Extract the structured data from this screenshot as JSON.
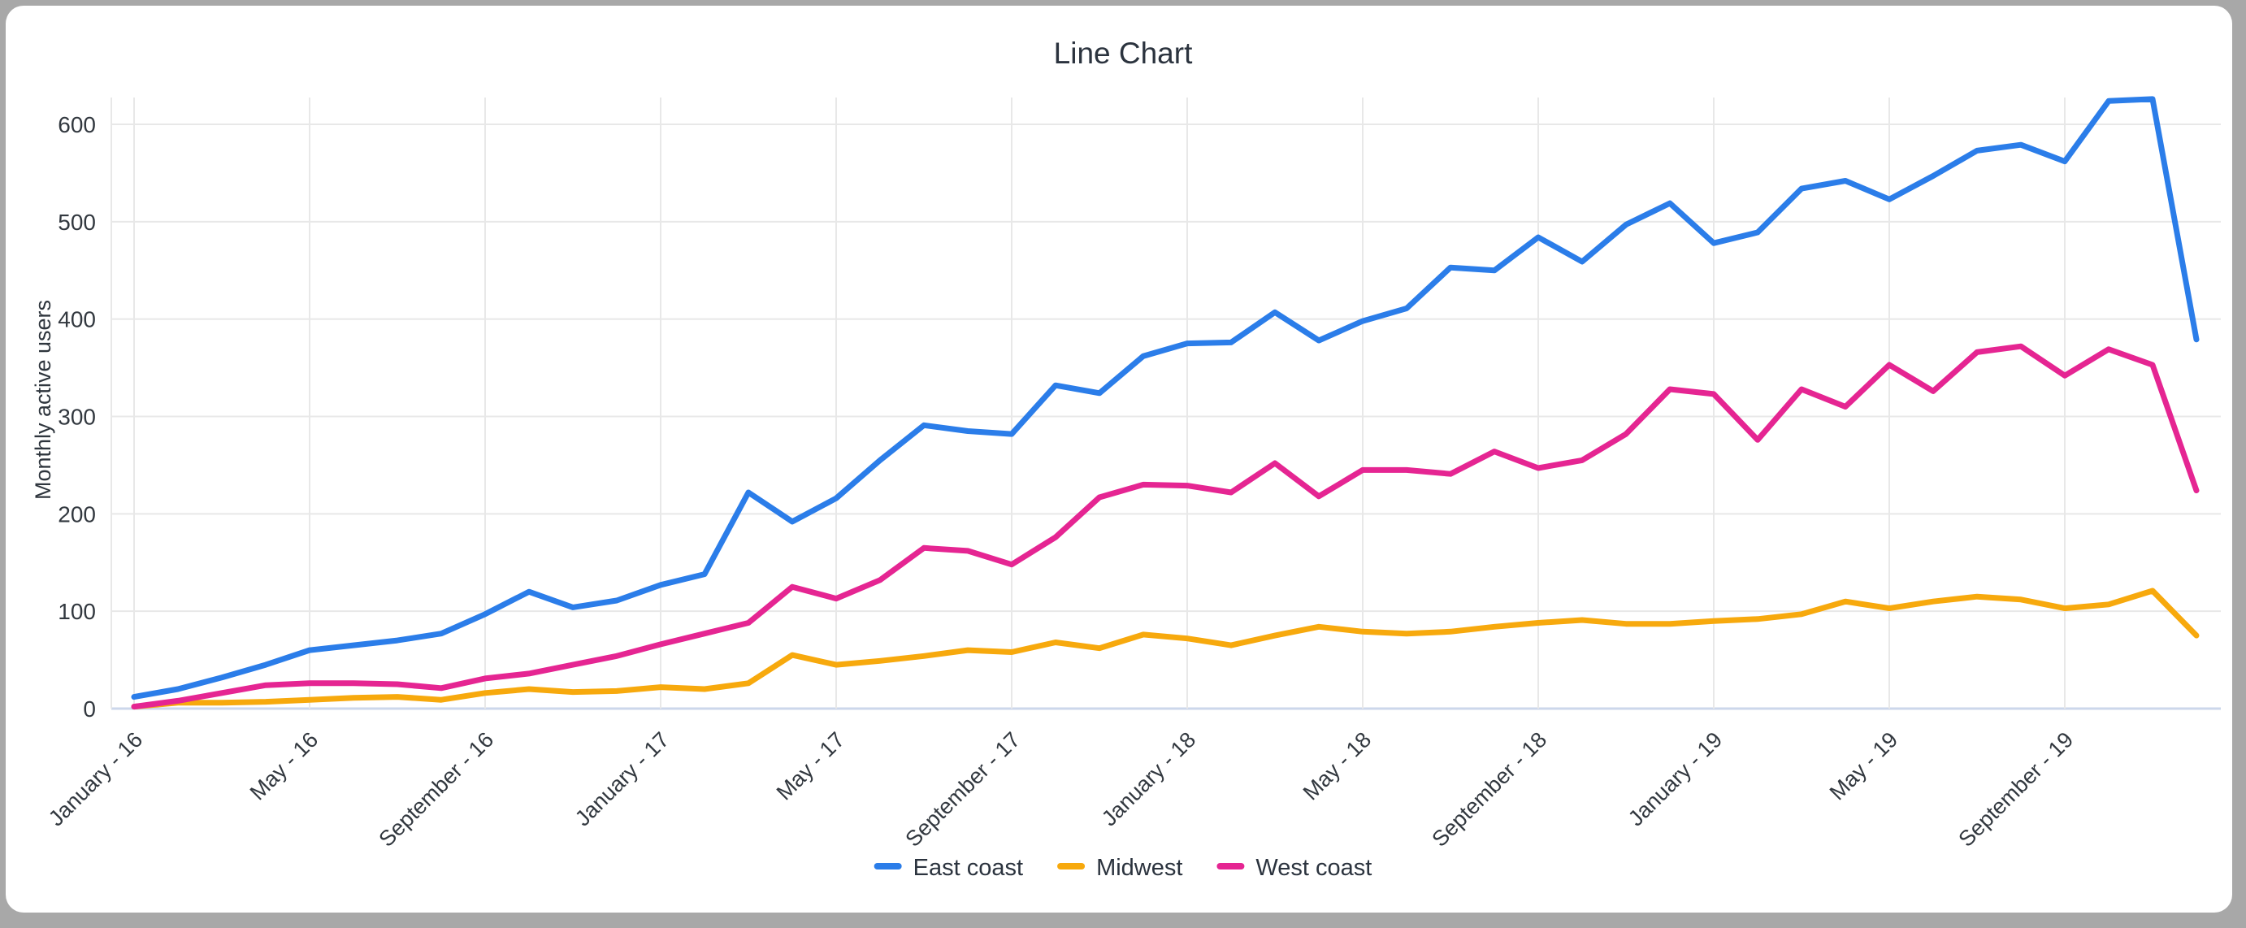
{
  "chart_data": {
    "type": "line",
    "title": "Line Chart",
    "xlabel": "",
    "ylabel": "Monthly active users",
    "y_ticks": [
      0,
      100,
      200,
      300,
      400,
      500,
      600
    ],
    "ylim": [
      0,
      650
    ],
    "grid": true,
    "legend_position": "bottom",
    "x_unit": "month",
    "x_range": [
      "January - 16",
      "December - 19"
    ],
    "n_points": 48,
    "x_tick_labels": [
      "January - 16",
      "May - 16",
      "September - 16",
      "January - 17",
      "May - 17",
      "September - 17",
      "January - 18",
      "May - 18",
      "September - 18",
      "January - 19",
      "May - 19",
      "September - 19"
    ],
    "x_tick_month_indices": [
      0,
      4,
      8,
      12,
      16,
      20,
      24,
      28,
      32,
      36,
      40,
      44
    ],
    "series": [
      {
        "name": "East coast",
        "color": "#2b7de9",
        "values": [
          12,
          20,
          32,
          45,
          60,
          65,
          70,
          77,
          97,
          120,
          104,
          111,
          127,
          138,
          222,
          192,
          216,
          255,
          291,
          285,
          282,
          332,
          324,
          362,
          375,
          376,
          407,
          378,
          398,
          411,
          453,
          450,
          484,
          459,
          497,
          519,
          478,
          489,
          534,
          542,
          523,
          547,
          573,
          579,
          562,
          624,
          626,
          379
        ]
      },
      {
        "name": "Midwest",
        "color": "#f7a90d",
        "values": [
          2,
          6,
          6,
          7,
          9,
          11,
          12,
          9,
          16,
          20,
          17,
          18,
          22,
          20,
          26,
          55,
          45,
          49,
          54,
          60,
          58,
          68,
          62,
          76,
          72,
          65,
          75,
          84,
          79,
          77,
          79,
          84,
          88,
          91,
          87,
          87,
          90,
          92,
          97,
          110,
          103,
          110,
          115,
          112,
          103,
          107,
          121,
          75
        ]
      },
      {
        "name": "West coast",
        "color": "#e52592",
        "values": [
          2,
          8,
          16,
          24,
          26,
          26,
          25,
          21,
          31,
          36,
          45,
          54,
          66,
          77,
          88,
          125,
          113,
          132,
          165,
          162,
          148,
          176,
          217,
          230,
          229,
          222,
          252,
          218,
          245,
          245,
          241,
          264,
          247,
          255,
          282,
          328,
          323,
          276,
          328,
          310,
          353,
          326,
          366,
          372,
          342,
          369,
          353,
          224
        ]
      }
    ],
    "colors": {
      "frame_background": "#a8a8a8",
      "card_background": "#ffffff",
      "gridline": "#e8e8e8",
      "baseline": "#ccd7eb",
      "title_text": "#2b333e",
      "tick_text": "#32383f"
    }
  }
}
